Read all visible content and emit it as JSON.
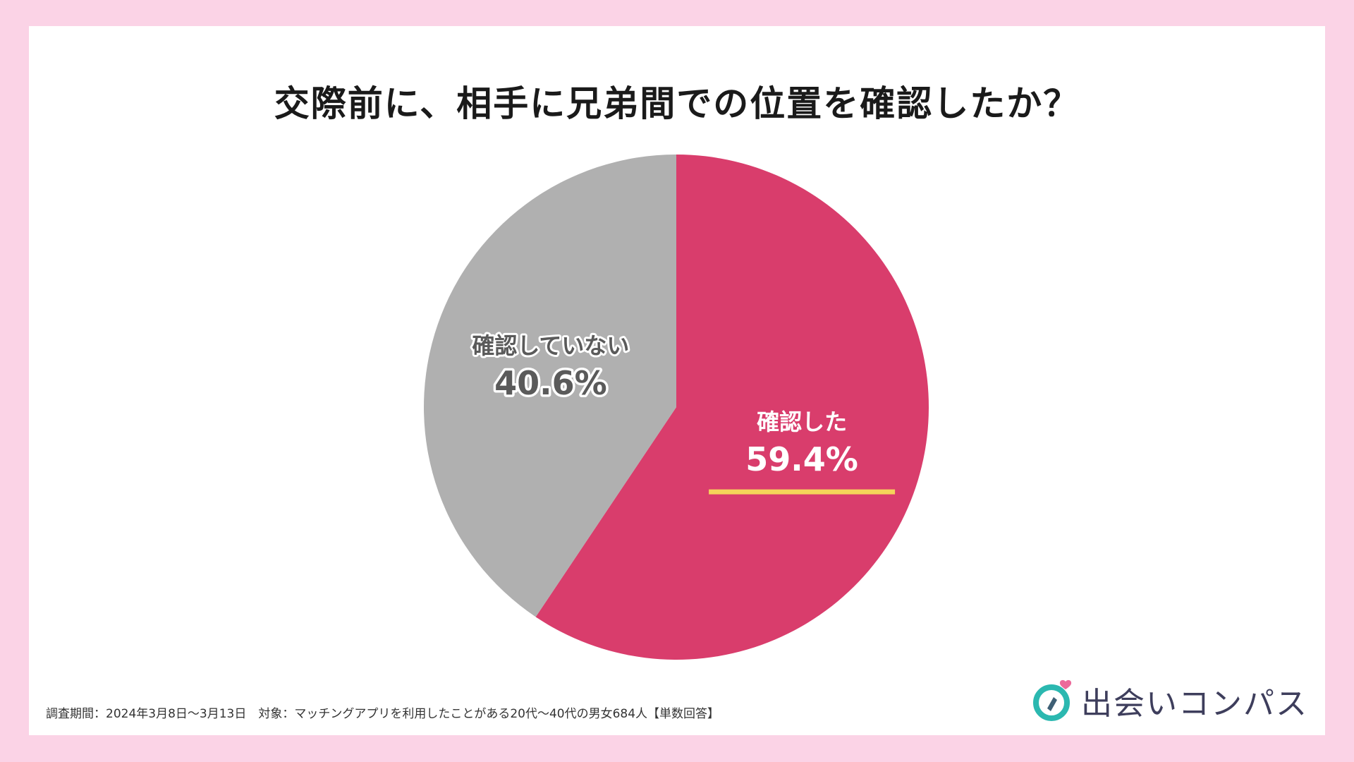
{
  "title": "交際前に、相手に兄弟間での位置を確認したか？",
  "chart_data": {
    "type": "pie",
    "title": "交際前に、相手に兄弟間での位置を確認したか？",
    "slices": [
      {
        "label": "確認した",
        "value": 59.4,
        "value_label": "59.4%",
        "color": "#d93d6c",
        "label_color": "#ffffff",
        "label_stroke": "#d93d6c"
      },
      {
        "label": "確認していない",
        "value": 40.6,
        "value_label": "40.6%",
        "color": "#b0b0b0",
        "label_color": "#5a5a5a",
        "label_stroke": "#ffffff"
      }
    ],
    "start_angle_deg": 0,
    "direction": "clockwise",
    "highlight_underline_color": "#f5d35a"
  },
  "footnote": "調査期間：2024年3月8日〜3月13日　対象：マッチングアプリを利用したことがある20代〜40代の男女684人【単数回答】",
  "brand": {
    "name": "出会いコンパス",
    "logo_icon": "compass-heart-icon",
    "colors": {
      "ring": "#2bb8b0",
      "needle": "#3e5f75",
      "heart": "#ec6a9a"
    }
  },
  "colors": {
    "background": "#fbd3e6",
    "card": "#ffffff"
  }
}
